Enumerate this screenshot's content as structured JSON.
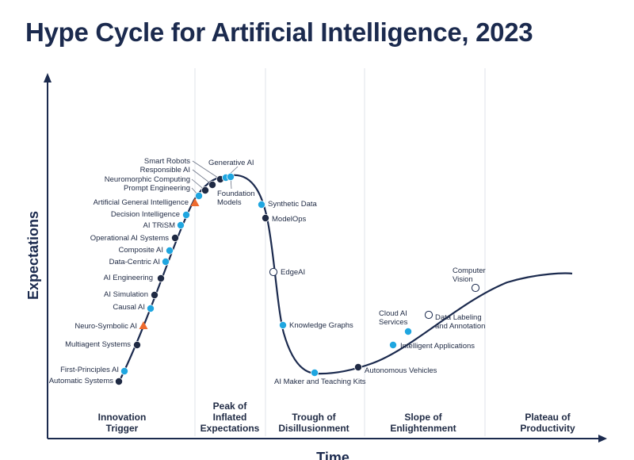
{
  "title": "Hype Cycle for Artificial Intelligence, 2023",
  "axes": {
    "y": "Expectations",
    "x": "Time"
  },
  "colors": {
    "navy": "#1b2a4e",
    "cyan": "#1fa6e0",
    "dark": "#1f2a44",
    "orange": "#ee6b2f",
    "white": "#ffffff",
    "grid": "#dfe3ea"
  },
  "phases": [
    {
      "lines": [
        "Innovation",
        "Trigger"
      ]
    },
    {
      "lines": [
        "Peak of",
        "Inflated",
        "Expectations"
      ]
    },
    {
      "lines": [
        "Trough of",
        "Disillusionment"
      ]
    },
    {
      "lines": [
        "Slope of",
        "Enlightenment"
      ]
    },
    {
      "lines": [
        "Plateau of",
        "Productivity"
      ]
    }
  ],
  "technologies": [
    {
      "name": "Automatic Systems",
      "phase": "Innovation Trigger",
      "marker": "dark"
    },
    {
      "name": "First-Principles AI",
      "phase": "Innovation Trigger",
      "marker": "cyan"
    },
    {
      "name": "Multiagent Systems",
      "phase": "Innovation Trigger",
      "marker": "dark"
    },
    {
      "name": "Neuro-Symbolic AI",
      "phase": "Innovation Trigger",
      "marker": "orange-triangle"
    },
    {
      "name": "Causal AI",
      "phase": "Innovation Trigger",
      "marker": "cyan"
    },
    {
      "name": "AI Simulation",
      "phase": "Innovation Trigger",
      "marker": "dark"
    },
    {
      "name": "AI Engineering",
      "phase": "Innovation Trigger",
      "marker": "dark"
    },
    {
      "name": "Data-Centric AI",
      "phase": "Innovation Trigger",
      "marker": "cyan"
    },
    {
      "name": "Composite AI",
      "phase": "Innovation Trigger",
      "marker": "cyan"
    },
    {
      "name": "Operational AI Systems",
      "phase": "Innovation Trigger",
      "marker": "dark"
    },
    {
      "name": "AI TRiSM",
      "phase": "Innovation Trigger",
      "marker": "cyan"
    },
    {
      "name": "Decision Intelligence",
      "phase": "Innovation Trigger",
      "marker": "cyan"
    },
    {
      "name": "Artificial General Intelligence",
      "phase": "Innovation Trigger",
      "marker": "orange-triangle"
    },
    {
      "name": "Prompt Engineering",
      "phase": "Peak of Inflated Expectations",
      "marker": "cyan"
    },
    {
      "name": "Neuromorphic Computing",
      "phase": "Peak of Inflated Expectations",
      "marker": "dark"
    },
    {
      "name": "Responsible AI",
      "phase": "Peak of Inflated Expectations",
      "marker": "dark"
    },
    {
      "name": "Smart Robots",
      "phase": "Peak of Inflated Expectations",
      "marker": "dark"
    },
    {
      "name": "Generative AI",
      "phase": "Peak of Inflated Expectations",
      "marker": "cyan"
    },
    {
      "name": "Foundation Models",
      "phase": "Peak of Inflated Expectations",
      "marker": "cyan"
    },
    {
      "name": "Synthetic Data",
      "phase": "Trough of Disillusionment",
      "marker": "cyan"
    },
    {
      "name": "ModelOps",
      "phase": "Trough of Disillusionment",
      "marker": "dark"
    },
    {
      "name": "EdgeAI",
      "phase": "Trough of Disillusionment",
      "marker": "white"
    },
    {
      "name": "Knowledge Graphs",
      "phase": "Trough of Disillusionment",
      "marker": "cyan"
    },
    {
      "name": "AI Maker and Teaching Kits",
      "phase": "Trough of Disillusionment",
      "marker": "cyan"
    },
    {
      "name": "Autonomous Vehicles",
      "phase": "Slope of Enlightenment",
      "marker": "dark"
    },
    {
      "name": "Intelligent Applications",
      "phase": "Slope of Enlightenment",
      "marker": "cyan"
    },
    {
      "name": "Cloud AI Services",
      "phase": "Slope of Enlightenment",
      "marker": "cyan"
    },
    {
      "name": "Data Labeling and Annotation",
      "phase": "Slope of Enlightenment",
      "marker": "white"
    },
    {
      "name": "Computer Vision",
      "phase": "Slope of Enlightenment",
      "marker": "white"
    }
  ]
}
